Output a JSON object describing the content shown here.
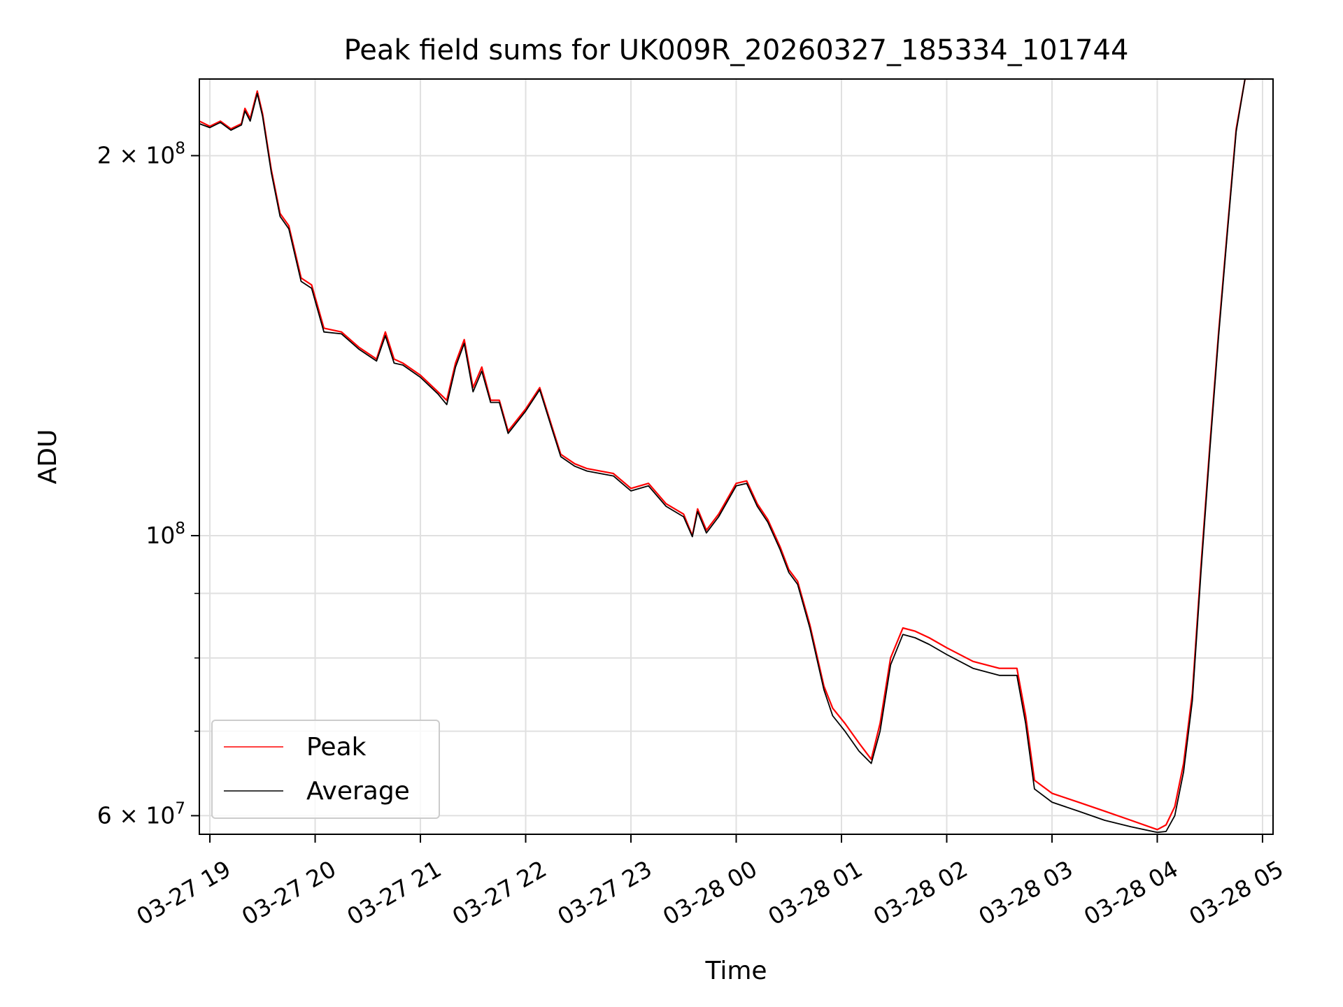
{
  "chart_data": {
    "type": "line",
    "title": "Peak field sums for UK009R_20260327_185334_101744",
    "xlabel": "Time",
    "ylabel": "ADU",
    "y_scale": "log",
    "ylim": [
      58000000,
      230000000
    ],
    "xlim": [
      "2026-03-27T18:54",
      "2026-03-28T05:06"
    ],
    "grid": true,
    "legend_position": "lower-left",
    "x_tick_labels": [
      "03-27 19",
      "03-27 20",
      "03-27 21",
      "03-27 22",
      "03-27 23",
      "03-28 00",
      "03-28 01",
      "03-28 02",
      "03-28 03",
      "03-28 04",
      "03-28 05"
    ],
    "x_ticks": [
      "2026-03-27T19:00",
      "2026-03-27T20:00",
      "2026-03-27T21:00",
      "2026-03-27T22:00",
      "2026-03-27T23:00",
      "2026-03-28T00:00",
      "2026-03-28T01:00",
      "2026-03-28T02:00",
      "2026-03-28T03:00",
      "2026-03-28T04:00",
      "2026-03-28T05:00"
    ],
    "y_ticks": [
      {
        "value": 60000000,
        "mantissa": "6",
        "exponent": "7"
      },
      {
        "value": 100000000,
        "mantissa": "",
        "exponent": "8"
      },
      {
        "value": 200000000,
        "mantissa": "2",
        "exponent": "8"
      }
    ],
    "y_minor_ticks": [
      70000000,
      80000000,
      90000000
    ],
    "series": [
      {
        "name": "Peak",
        "color": "#ff0000",
        "x": [
          "2026-03-27T18:54",
          "2026-03-27T19:00",
          "2026-03-27T19:06",
          "2026-03-27T19:12",
          "2026-03-27T19:18",
          "2026-03-27T19:20",
          "2026-03-27T19:23",
          "2026-03-27T19:27",
          "2026-03-27T19:30",
          "2026-03-27T19:35",
          "2026-03-27T19:40",
          "2026-03-27T19:45",
          "2026-03-27T19:52",
          "2026-03-27T19:58",
          "2026-03-27T20:05",
          "2026-03-27T20:15",
          "2026-03-27T20:25",
          "2026-03-27T20:35",
          "2026-03-27T20:40",
          "2026-03-27T20:45",
          "2026-03-27T20:50",
          "2026-03-27T21:00",
          "2026-03-27T21:10",
          "2026-03-27T21:15",
          "2026-03-27T21:20",
          "2026-03-27T21:25",
          "2026-03-27T21:30",
          "2026-03-27T21:35",
          "2026-03-27T21:40",
          "2026-03-27T21:45",
          "2026-03-27T21:50",
          "2026-03-27T22:00",
          "2026-03-27T22:08",
          "2026-03-27T22:15",
          "2026-03-27T22:20",
          "2026-03-27T22:28",
          "2026-03-27T22:35",
          "2026-03-27T22:50",
          "2026-03-27T23:00",
          "2026-03-27T23:10",
          "2026-03-27T23:20",
          "2026-03-27T23:30",
          "2026-03-27T23:35",
          "2026-03-27T23:38",
          "2026-03-27T23:43",
          "2026-03-27T23:50",
          "2026-03-28T00:00",
          "2026-03-28T00:06",
          "2026-03-28T00:12",
          "2026-03-28T00:18",
          "2026-03-28T00:25",
          "2026-03-28T00:30",
          "2026-03-28T00:35",
          "2026-03-28T00:42",
          "2026-03-28T00:50",
          "2026-03-28T00:55",
          "2026-03-28T01:02",
          "2026-03-28T01:10",
          "2026-03-28T01:17",
          "2026-03-28T01:22",
          "2026-03-28T01:28",
          "2026-03-28T01:35",
          "2026-03-28T01:42",
          "2026-03-28T01:50",
          "2026-03-28T02:00",
          "2026-03-28T02:15",
          "2026-03-28T02:30",
          "2026-03-28T02:40",
          "2026-03-28T02:45",
          "2026-03-28T02:50",
          "2026-03-28T03:00",
          "2026-03-28T03:15",
          "2026-03-28T03:30",
          "2026-03-28T03:45",
          "2026-03-28T04:00",
          "2026-03-28T04:05",
          "2026-03-28T04:10",
          "2026-03-28T04:15",
          "2026-03-28T04:20",
          "2026-03-28T04:25",
          "2026-03-28T04:30",
          "2026-03-28T04:35",
          "2026-03-28T04:40",
          "2026-03-28T04:45",
          "2026-03-28T04:50",
          "2026-03-28T04:55"
        ],
        "y": [
          213000000,
          211000000,
          213000000,
          210000000,
          212000000,
          218000000,
          214000000,
          225000000,
          216000000,
          195000000,
          180000000,
          176000000,
          160000000,
          158000000,
          146000000,
          145000000,
          141000000,
          138000000,
          145000000,
          138000000,
          137000000,
          134000000,
          130000000,
          128000000,
          137000000,
          143000000,
          131000000,
          136000000,
          128000000,
          128000000,
          121000000,
          126000000,
          131000000,
          122000000,
          116000000,
          114000000,
          113000000,
          112000000,
          109000000,
          110000000,
          106000000,
          104000000,
          100000000,
          105000000,
          101000000,
          104000000,
          110000000,
          110500000,
          106000000,
          103000000,
          98000000,
          94000000,
          92000000,
          85000000,
          76000000,
          73000000,
          71000000,
          68500000,
          66500000,
          71000000,
          80000000,
          84500000,
          84000000,
          83000000,
          81500000,
          79500000,
          78500000,
          78500000,
          72000000,
          64000000,
          62500000,
          61500000,
          60500000,
          59500000,
          58500000,
          59000000,
          61000000,
          66000000,
          75000000,
          95000000,
          118000000,
          145000000,
          175000000,
          210000000,
          230000000,
          230000000
        ]
      },
      {
        "name": "Average",
        "color": "#000000",
        "x": [
          "2026-03-27T18:54",
          "2026-03-27T19:00",
          "2026-03-27T19:06",
          "2026-03-27T19:12",
          "2026-03-27T19:18",
          "2026-03-27T19:20",
          "2026-03-27T19:23",
          "2026-03-27T19:27",
          "2026-03-27T19:30",
          "2026-03-27T19:35",
          "2026-03-27T19:40",
          "2026-03-27T19:45",
          "2026-03-27T19:52",
          "2026-03-27T19:58",
          "2026-03-27T20:05",
          "2026-03-27T20:15",
          "2026-03-27T20:25",
          "2026-03-27T20:35",
          "2026-03-27T20:40",
          "2026-03-27T20:45",
          "2026-03-27T20:50",
          "2026-03-27T21:00",
          "2026-03-27T21:10",
          "2026-03-27T21:15",
          "2026-03-27T21:20",
          "2026-03-27T21:25",
          "2026-03-27T21:30",
          "2026-03-27T21:35",
          "2026-03-27T21:40",
          "2026-03-27T21:45",
          "2026-03-27T21:50",
          "2026-03-27T22:00",
          "2026-03-27T22:08",
          "2026-03-27T22:15",
          "2026-03-27T22:20",
          "2026-03-27T22:28",
          "2026-03-27T22:35",
          "2026-03-27T22:50",
          "2026-03-27T23:00",
          "2026-03-27T23:10",
          "2026-03-27T23:20",
          "2026-03-27T23:30",
          "2026-03-27T23:35",
          "2026-03-27T23:38",
          "2026-03-27T23:43",
          "2026-03-27T23:50",
          "2026-03-28T00:00",
          "2026-03-28T00:06",
          "2026-03-28T00:12",
          "2026-03-28T00:18",
          "2026-03-28T00:25",
          "2026-03-28T00:30",
          "2026-03-28T00:35",
          "2026-03-28T00:42",
          "2026-03-28T00:50",
          "2026-03-28T00:55",
          "2026-03-28T01:02",
          "2026-03-28T01:10",
          "2026-03-28T01:17",
          "2026-03-28T01:22",
          "2026-03-28T01:28",
          "2026-03-28T01:35",
          "2026-03-28T01:42",
          "2026-03-28T01:50",
          "2026-03-28T02:00",
          "2026-03-28T02:15",
          "2026-03-28T02:30",
          "2026-03-28T02:40",
          "2026-03-28T02:45",
          "2026-03-28T02:50",
          "2026-03-28T03:00",
          "2026-03-28T03:15",
          "2026-03-28T03:30",
          "2026-03-28T03:45",
          "2026-03-28T04:00",
          "2026-03-28T04:05",
          "2026-03-28T04:10",
          "2026-03-28T04:15",
          "2026-03-28T04:20",
          "2026-03-28T04:25",
          "2026-03-28T04:30",
          "2026-03-28T04:35",
          "2026-03-28T04:40",
          "2026-03-28T04:45",
          "2026-03-28T04:50",
          "2026-03-28T04:55"
        ],
        "y": [
          212000000,
          210500000,
          212500000,
          209500000,
          211500000,
          217000000,
          213000000,
          224000000,
          215000000,
          194000000,
          179000000,
          175000000,
          159000000,
          157000000,
          145000000,
          144500000,
          140500000,
          137500000,
          144000000,
          137000000,
          136500000,
          133500000,
          129500000,
          127000000,
          136000000,
          142000000,
          130000000,
          135000000,
          127500000,
          127500000,
          120500000,
          125500000,
          130500000,
          121500000,
          115500000,
          113500000,
          112500000,
          111500000,
          108500000,
          109500000,
          105500000,
          103500000,
          99800000,
          104500000,
          100500000,
          103500000,
          109500000,
          110000000,
          105500000,
          102500000,
          97500000,
          93500000,
          91500000,
          84500000,
          75500000,
          72000000,
          70000000,
          67500000,
          66000000,
          70000000,
          79000000,
          83500000,
          83000000,
          82000000,
          80500000,
          78500000,
          77500000,
          77500000,
          71000000,
          63000000,
          61500000,
          60500000,
          59500000,
          58800000,
          58200000,
          58300000,
          60000000,
          65000000,
          74000000,
          94000000,
          117000000,
          144000000,
          174000000,
          209000000,
          230000000,
          230000000
        ]
      }
    ]
  }
}
